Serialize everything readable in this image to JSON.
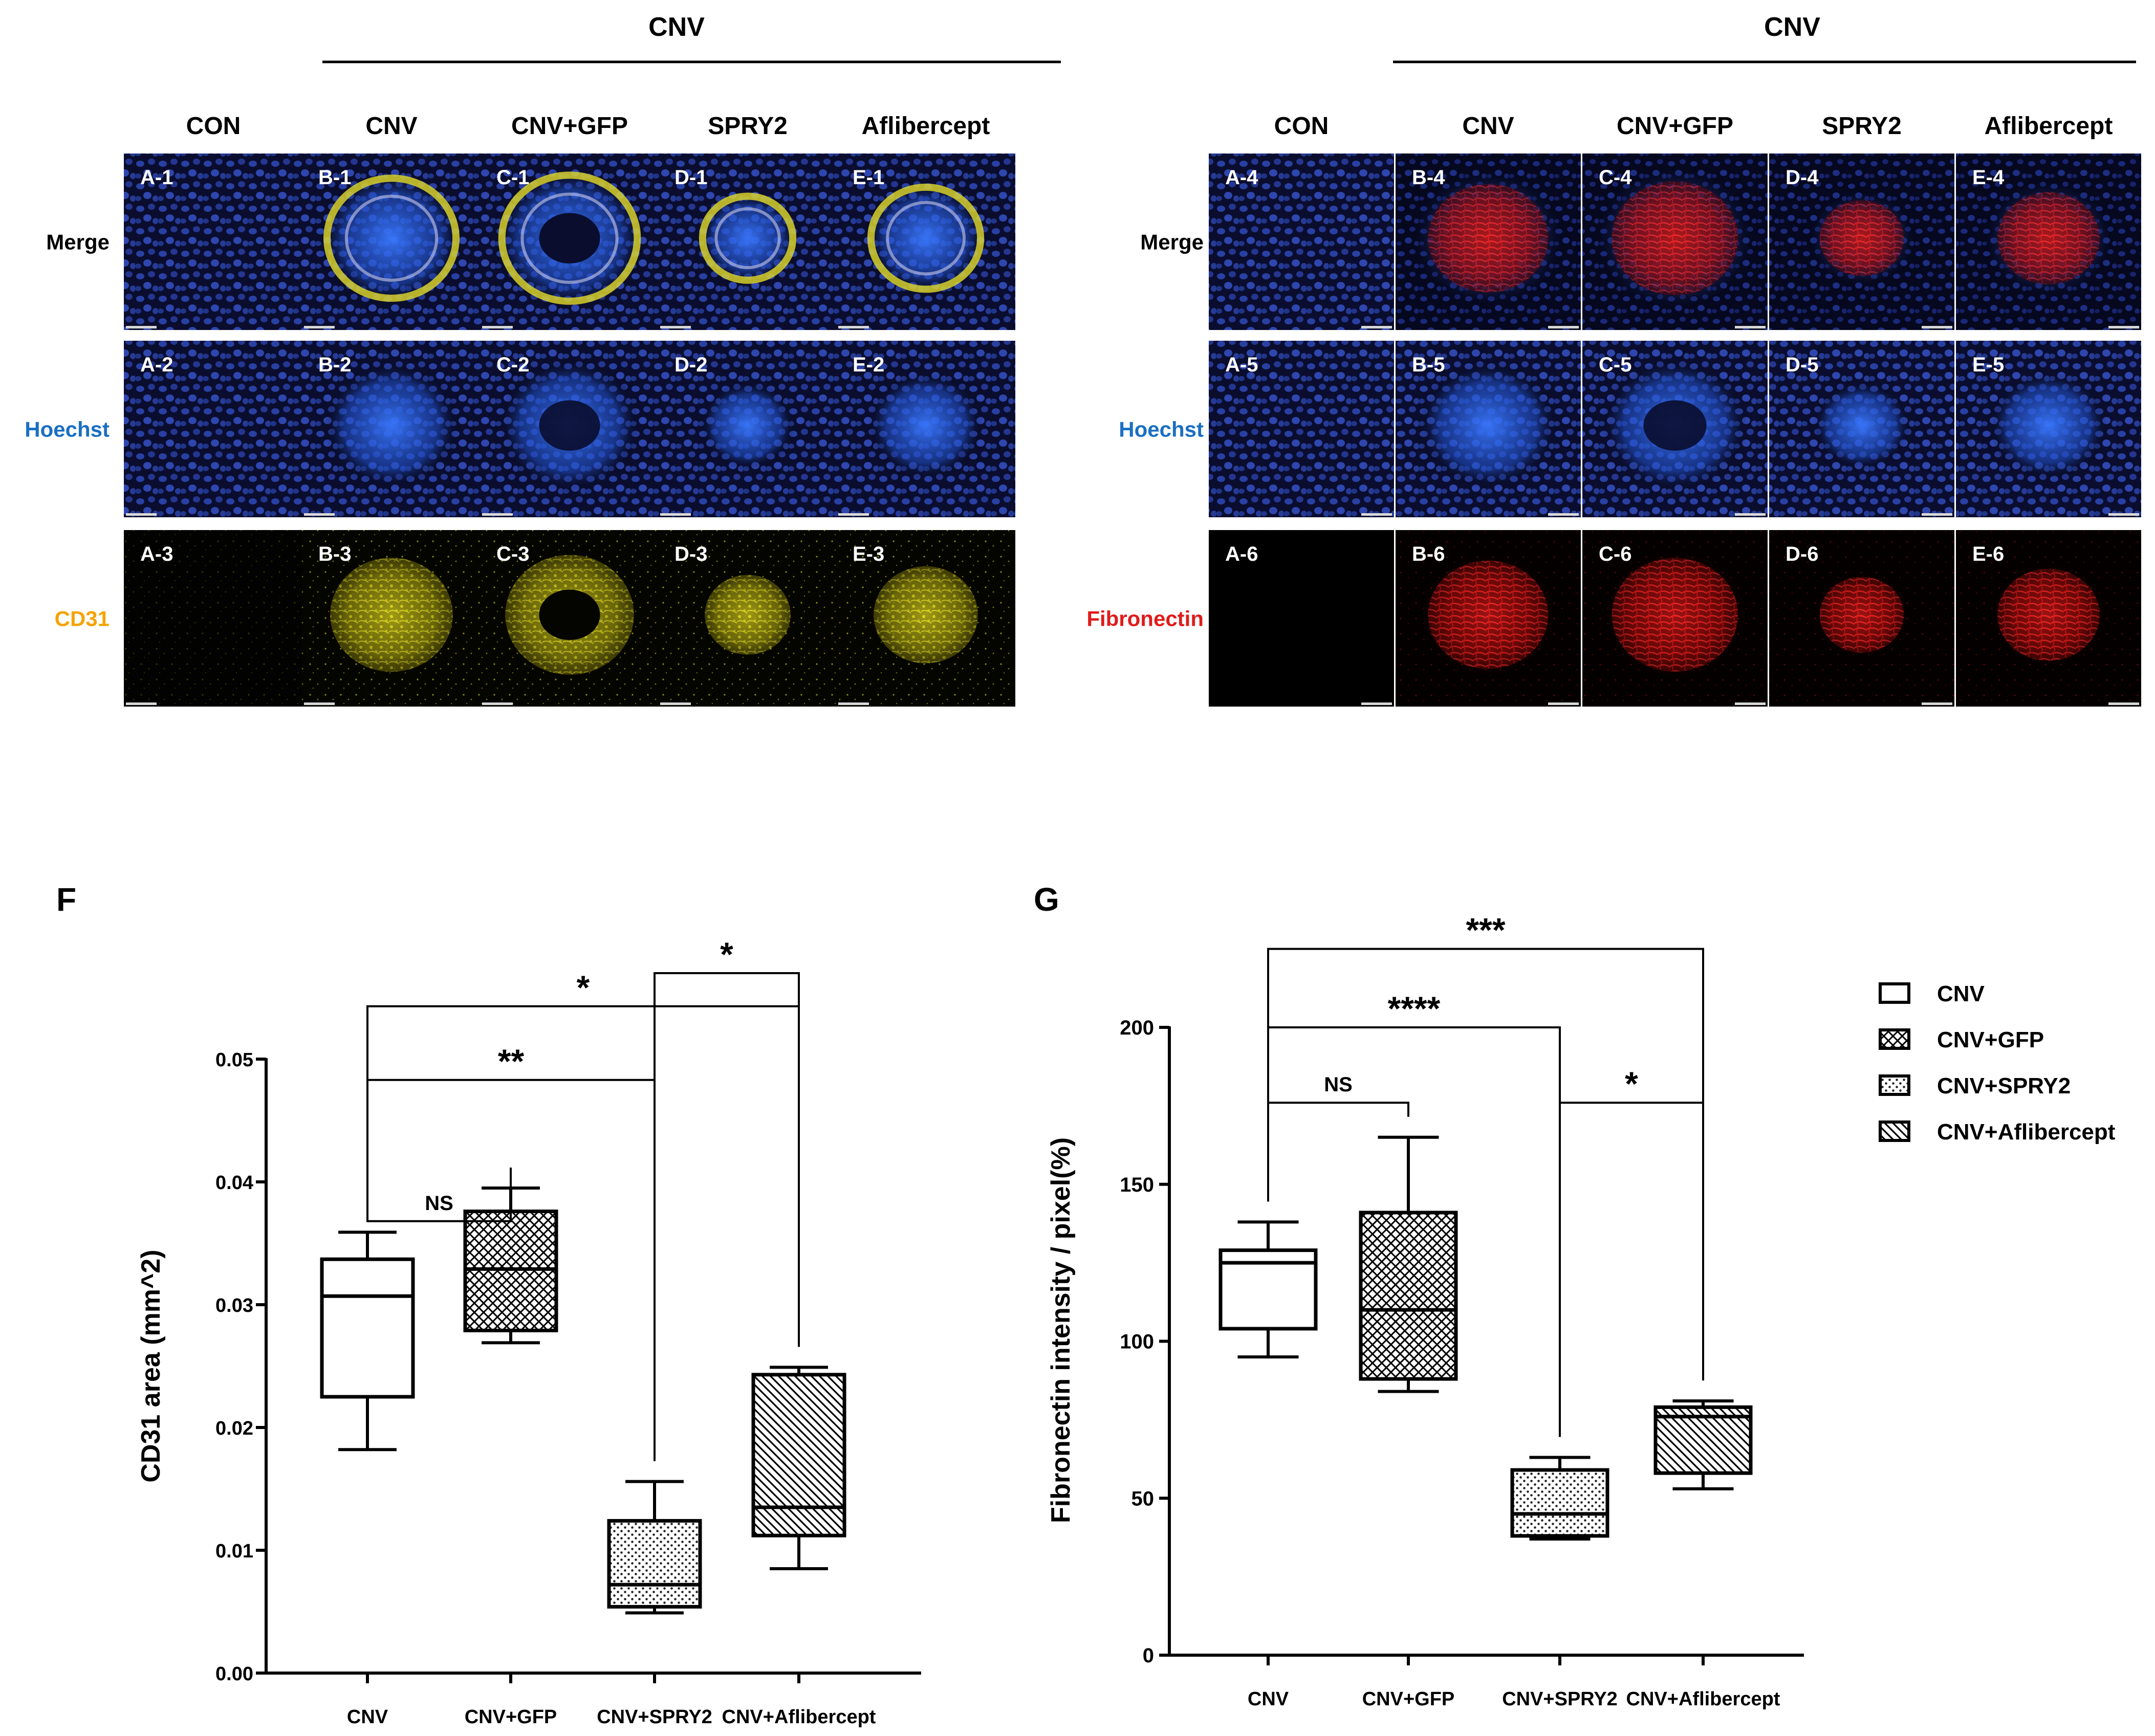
{
  "top_panels": [
    {
      "bracket_label": "CNV",
      "column_headers": [
        "CON",
        "CNV",
        "CNV+GFP",
        "SPRY2",
        "Aflibercept"
      ],
      "row_labels": [
        {
          "text": "Merge",
          "color": "#000000"
        },
        {
          "text": "Hoechst",
          "color": "#1a6fc4"
        },
        {
          "text": "CD31",
          "color": "#f5a300"
        }
      ],
      "tile_labels": [
        [
          "A-1",
          "B-1",
          "C-1",
          "D-1",
          "E-1"
        ],
        [
          "A-2",
          "B-2",
          "C-2",
          "D-2",
          "E-2"
        ],
        [
          "A-3",
          "B-3",
          "C-3",
          "D-3",
          "E-3"
        ]
      ],
      "stain_colors": [
        "merge-yellow",
        "hoechst-blue",
        "cd31-yellow"
      ]
    },
    {
      "bracket_label": "CNV",
      "column_headers": [
        "CON",
        "CNV",
        "CNV+GFP",
        "SPRY2",
        "Aflibercept"
      ],
      "row_labels": [
        {
          "text": "Merge",
          "color": "#000000"
        },
        {
          "text": "Hoechst",
          "color": "#1a6fc4"
        },
        {
          "text": "Fibronectin",
          "color": "#e01b1b"
        }
      ],
      "tile_labels": [
        [
          "A-4",
          "B-4",
          "C-4",
          "D-4",
          "E-4"
        ],
        [
          "A-5",
          "B-5",
          "C-5",
          "D-5",
          "E-5"
        ],
        [
          "A-6",
          "B-6",
          "C-6",
          "D-6",
          "E-6"
        ]
      ],
      "stain_colors": [
        "merge-red",
        "hoechst-blue",
        "fibronectin-red"
      ]
    }
  ],
  "chart_data": [
    {
      "type": "box",
      "panel_letter": "F",
      "ylabel": "CD31 area (mm^2)",
      "ylim": [
        0,
        0.05
      ],
      "yticks": [
        "0.00",
        "0.01",
        "0.02",
        "0.03",
        "0.04",
        "0.05"
      ],
      "categories": [
        "CNV",
        "CNV+GFP",
        "CNV+SPRY2",
        "CNV+Aflibercept"
      ],
      "boxes": [
        {
          "min": 0.0182,
          "q1": 0.0225,
          "median": 0.0307,
          "q3": 0.0337,
          "max": 0.0359,
          "pattern": "empty"
        },
        {
          "min": 0.0269,
          "q1": 0.0279,
          "median": 0.0329,
          "q3": 0.0376,
          "max": 0.0395,
          "pattern": "crosshatch"
        },
        {
          "min": 0.0049,
          "q1": 0.0054,
          "median": 0.0072,
          "q3": 0.0124,
          "max": 0.0156,
          "pattern": "dots"
        },
        {
          "min": 0.0085,
          "q1": 0.0112,
          "median": 0.0135,
          "q3": 0.0243,
          "max": 0.0249,
          "pattern": "diagonal"
        }
      ],
      "significance": [
        {
          "from": 0,
          "to": 1,
          "label": "NS",
          "level": 0.0368
        },
        {
          "from": 0,
          "to": 2,
          "label": "**",
          "level": 0.0483
        },
        {
          "from": 0,
          "to": 3,
          "label": "*",
          "level": 0.0543
        },
        {
          "from": 2,
          "to": 3,
          "label": "*",
          "level": 0.057
        }
      ]
    },
    {
      "type": "box",
      "panel_letter": "G",
      "ylabel": "Fibronectin intensity / pixel(%)",
      "ylim": [
        0,
        200
      ],
      "yticks": [
        "0",
        "50",
        "100",
        "150",
        "200"
      ],
      "categories": [
        "CNV",
        "CNV+GFP",
        "CNV+SPRY2",
        "CNV+Aflibercept"
      ],
      "boxes": [
        {
          "min": 95,
          "q1": 104,
          "median": 125,
          "q3": 129,
          "max": 138,
          "pattern": "empty"
        },
        {
          "min": 84,
          "q1": 88,
          "median": 110,
          "q3": 141,
          "max": 165,
          "pattern": "crosshatch"
        },
        {
          "min": 37,
          "q1": 38,
          "median": 45,
          "q3": 59,
          "max": 63,
          "pattern": "dots"
        },
        {
          "min": 53,
          "q1": 58,
          "median": 76,
          "q3": 79,
          "max": 81,
          "pattern": "diagonal"
        }
      ],
      "significance": [
        {
          "from": 0,
          "to": 1,
          "label": "NS",
          "level": 176
        },
        {
          "from": 2,
          "to": 3,
          "label": "*",
          "level": 176
        },
        {
          "from": 0,
          "to": 2,
          "label": "****",
          "level": 200
        },
        {
          "from": 0,
          "to": 3,
          "label": "***",
          "level": 225
        }
      ],
      "legend": [
        {
          "name": "CNV",
          "pattern": "empty"
        },
        {
          "name": "CNV+GFP",
          "pattern": "crosshatch"
        },
        {
          "name": "CNV+SPRY2",
          "pattern": "dots"
        },
        {
          "name": "CNV+Aflibercept",
          "pattern": "diagonal"
        }
      ]
    }
  ]
}
